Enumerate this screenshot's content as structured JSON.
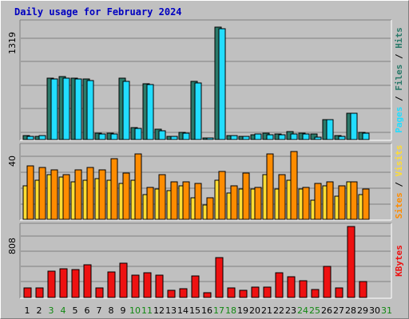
{
  "title": "Daily usage for February 2024",
  "colors": {
    "pages": "#22ddff",
    "files": "#2a7a6a",
    "hits": "#2a7a6a",
    "visits": "#ff8c00",
    "sites": "#ffdd33",
    "kbytes": "#ee1111",
    "weekend": "#118811",
    "weekday": "#000000",
    "separator": "#000000"
  },
  "chart_data": [
    {
      "type": "bar",
      "name": "pages-files-hits",
      "title": "Daily usage for February 2024",
      "ylabel_parts": [
        "Pages",
        "Files",
        "Hits"
      ],
      "ymax": 1319,
      "ymax_label": "1319",
      "categories": [
        "1",
        "2",
        "3",
        "4",
        "5",
        "6",
        "7",
        "8",
        "9",
        "10",
        "11",
        "12",
        "13",
        "14",
        "15",
        "16",
        "17",
        "18",
        "19",
        "20",
        "21",
        "22",
        "23",
        "24",
        "25",
        "26",
        "27",
        "28",
        "29",
        "30",
        "31"
      ],
      "series": [
        {
          "name": "Hits",
          "values": [
            45,
            40,
            700,
            720,
            700,
            690,
            70,
            70,
            700,
            140,
            640,
            120,
            40,
            80,
            660,
            20,
            1280,
            45,
            35,
            55,
            70,
            65,
            90,
            75,
            60,
            230,
            50,
            300,
            80,
            0,
            0
          ]
        },
        {
          "name": "Pages",
          "values": [
            35,
            45,
            690,
            700,
            690,
            670,
            65,
            65,
            660,
            125,
            630,
            100,
            35,
            75,
            645,
            15,
            1260,
            45,
            35,
            60,
            55,
            55,
            60,
            65,
            30,
            225,
            40,
            300,
            70,
            0,
            0
          ]
        }
      ]
    },
    {
      "type": "bar",
      "name": "visits-sites",
      "ylabel_parts": [
        "Sites",
        "Visits"
      ],
      "ymax": 40,
      "ymax_label": "40",
      "categories": [
        "1",
        "2",
        "3",
        "4",
        "5",
        "6",
        "7",
        "8",
        "9",
        "10",
        "11",
        "12",
        "13",
        "14",
        "15",
        "16",
        "17",
        "18",
        "19",
        "20",
        "21",
        "22",
        "23",
        "24",
        "25",
        "26",
        "27",
        "28",
        "29",
        "30",
        "31"
      ],
      "series": [
        {
          "name": "Sites",
          "values": [
            19,
            22,
            25,
            24,
            21,
            22,
            23,
            22,
            20,
            22,
            14,
            17,
            16,
            19,
            12,
            8,
            22,
            15,
            17,
            17,
            25,
            17,
            22,
            17,
            11,
            19,
            13,
            21,
            14,
            0,
            0
          ]
        },
        {
          "name": "Visits",
          "values": [
            30,
            29,
            28,
            25,
            28,
            29,
            28,
            34,
            26,
            37,
            18,
            25,
            21,
            21,
            20,
            12,
            27,
            19,
            26,
            18,
            37,
            25,
            38,
            18,
            20,
            21,
            19,
            21,
            17,
            0,
            0
          ]
        }
      ]
    },
    {
      "type": "bar",
      "name": "kbytes",
      "ylabel_parts": [
        "KBytes"
      ],
      "ymax": 808,
      "ymax_label": "808",
      "categories": [
        "1",
        "2",
        "3",
        "4",
        "5",
        "6",
        "7",
        "8",
        "9",
        "10",
        "11",
        "12",
        "13",
        "14",
        "15",
        "16",
        "17",
        "18",
        "19",
        "20",
        "21",
        "22",
        "23",
        "24",
        "25",
        "26",
        "27",
        "28",
        "29",
        "30",
        "31"
      ],
      "series": [
        {
          "name": "KBytes",
          "values": [
            105,
            105,
            300,
            330,
            320,
            370,
            110,
            290,
            390,
            250,
            280,
            250,
            85,
            100,
            245,
            50,
            450,
            110,
            85,
            115,
            115,
            285,
            235,
            195,
            95,
            355,
            110,
            808,
            180,
            0,
            0
          ]
        }
      ]
    }
  ],
  "x_labels": [
    {
      "day": "1",
      "weekend": false
    },
    {
      "day": "2",
      "weekend": false
    },
    {
      "day": "3",
      "weekend": true
    },
    {
      "day": "4",
      "weekend": true
    },
    {
      "day": "5",
      "weekend": false
    },
    {
      "day": "6",
      "weekend": false
    },
    {
      "day": "7",
      "weekend": false
    },
    {
      "day": "8",
      "weekend": false
    },
    {
      "day": "9",
      "weekend": false
    },
    {
      "day": "10",
      "weekend": true
    },
    {
      "day": "11",
      "weekend": true
    },
    {
      "day": "12",
      "weekend": false
    },
    {
      "day": "13",
      "weekend": false
    },
    {
      "day": "14",
      "weekend": false
    },
    {
      "day": "15",
      "weekend": false
    },
    {
      "day": "16",
      "weekend": false
    },
    {
      "day": "17",
      "weekend": true
    },
    {
      "day": "18",
      "weekend": true
    },
    {
      "day": "19",
      "weekend": false
    },
    {
      "day": "20",
      "weekend": false
    },
    {
      "day": "21",
      "weekend": false
    },
    {
      "day": "22",
      "weekend": false
    },
    {
      "day": "23",
      "weekend": false
    },
    {
      "day": "24",
      "weekend": true
    },
    {
      "day": "25",
      "weekend": true
    },
    {
      "day": "26",
      "weekend": false
    },
    {
      "day": "27",
      "weekend": false
    },
    {
      "day": "28",
      "weekend": false
    },
    {
      "day": "29",
      "weekend": false
    },
    {
      "day": "30",
      "weekend": false
    },
    {
      "day": "31",
      "weekend": true
    }
  ]
}
